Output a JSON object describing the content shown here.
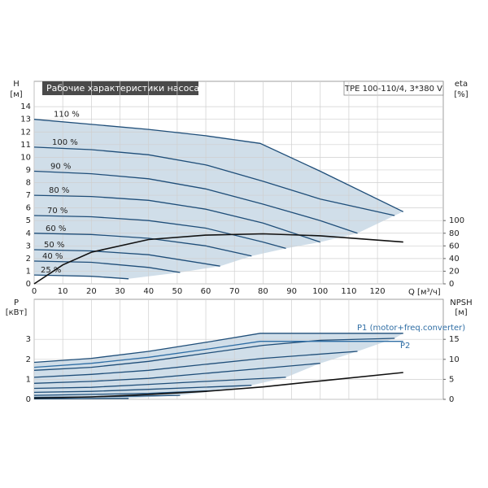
{
  "chart_data": [
    {
      "type": "line",
      "title": "Рабочие характеристики насоса",
      "subtitle": "TPE 100-110/4, 3*380 V",
      "ylabel": "H",
      "yunit": "[м]",
      "y2label": "eta",
      "y2unit": "[%]",
      "xlabel": "Q [м³/ч]",
      "xlim": [
        0,
        143
      ],
      "xticks": [
        0,
        10,
        20,
        30,
        40,
        50,
        60,
        70,
        80,
        90,
        100,
        110,
        120
      ],
      "ylim": [
        0,
        16
      ],
      "yticks": [
        0,
        1,
        2,
        3,
        4,
        5,
        6,
        7,
        8,
        9,
        10,
        11,
        12,
        13,
        14
      ],
      "y2lim": [
        0,
        320
      ],
      "y2ticks": [
        0,
        20,
        40,
        60,
        80,
        100
      ],
      "grid": true,
      "area_color": "#c8d8e5",
      "series": [
        {
          "name": "110 %",
          "color": "#1f4e79",
          "x": [
            0,
            20,
            40,
            60,
            79,
            100,
            129
          ],
          "values": [
            13,
            12.6,
            12.2,
            11.7,
            11.1,
            8.9,
            5.7
          ]
        },
        {
          "name": "100 %",
          "color": "#1f4e79",
          "x": [
            0,
            20,
            40,
            60,
            80,
            100,
            126
          ],
          "values": [
            10.8,
            10.6,
            10.2,
            9.4,
            8.1,
            6.7,
            5.4
          ]
        },
        {
          "name": "90 %",
          "color": "#1f4e79",
          "x": [
            0,
            20,
            40,
            60,
            80,
            100,
            113
          ],
          "values": [
            8.9,
            8.7,
            8.3,
            7.5,
            6.3,
            5.0,
            4.0
          ]
        },
        {
          "name": "80 %",
          "color": "#1f4e79",
          "x": [
            0,
            20,
            40,
            60,
            80,
            100
          ],
          "values": [
            7.0,
            6.9,
            6.6,
            5.9,
            4.8,
            3.3
          ]
        },
        {
          "name": "70 %",
          "color": "#1f4e79",
          "x": [
            0,
            20,
            40,
            60,
            80,
            88
          ],
          "values": [
            5.4,
            5.3,
            5.0,
            4.4,
            3.3,
            2.8
          ]
        },
        {
          "name": "60 %",
          "color": "#1f4e79",
          "x": [
            0,
            20,
            40,
            60,
            76
          ],
          "values": [
            4.0,
            3.9,
            3.6,
            3.0,
            2.2
          ]
        },
        {
          "name": "50 %",
          "color": "#1f4e79",
          "x": [
            0,
            20,
            40,
            65
          ],
          "values": [
            2.7,
            2.6,
            2.3,
            1.4
          ]
        },
        {
          "name": "40 %",
          "color": "#1f4e79",
          "x": [
            0,
            20,
            40,
            51
          ],
          "values": [
            1.8,
            1.7,
            1.3,
            0.9
          ]
        },
        {
          "name": "25 %",
          "color": "#1f4e79",
          "x": [
            0,
            20,
            33
          ],
          "values": [
            0.7,
            0.6,
            0.4
          ]
        },
        {
          "color": "#111111",
          "axis": "y2",
          "x": [
            0,
            10,
            20,
            40,
            60,
            80,
            100,
            129
          ],
          "values": [
            0,
            30,
            50,
            70,
            77,
            79,
            76,
            66
          ]
        }
      ]
    },
    {
      "type": "line",
      "ylabel": "P",
      "yunit": "[кВт]",
      "y2label": "NPSH",
      "y2unit": "[м]",
      "annotations": [
        "P1 (motor+freq.converter)",
        "P2"
      ],
      "xlim": [
        0,
        143
      ],
      "ylim": [
        0,
        5
      ],
      "yticks": [
        0,
        1,
        2,
        3
      ],
      "y2lim": [
        0,
        25
      ],
      "y2ticks": [
        0,
        5,
        10,
        15
      ],
      "grid": true,
      "area_color": "#c8d8e5",
      "series": [
        {
          "color": "#1f4e79",
          "x": [
            0,
            20,
            40,
            60,
            79,
            100,
            129
          ],
          "values": [
            1.85,
            2.05,
            2.4,
            2.85,
            3.3,
            3.3,
            3.3
          ]
        },
        {
          "color": "#1f4e79",
          "x": [
            0,
            20,
            40,
            60,
            80,
            100,
            126
          ],
          "values": [
            1.45,
            1.6,
            1.9,
            2.3,
            2.7,
            2.95,
            3.05
          ]
        },
        {
          "color": "#1f4e79",
          "x": [
            0,
            20,
            40,
            60,
            80,
            113
          ],
          "values": [
            1.1,
            1.25,
            1.45,
            1.75,
            2.05,
            2.4
          ]
        },
        {
          "color": "#1f4e79",
          "x": [
            0,
            20,
            40,
            60,
            80,
            100
          ],
          "values": [
            0.8,
            0.9,
            1.05,
            1.3,
            1.55,
            1.8
          ]
        },
        {
          "color": "#1f4e79",
          "x": [
            0,
            20,
            40,
            60,
            88
          ],
          "values": [
            0.55,
            0.6,
            0.75,
            0.9,
            1.1
          ]
        },
        {
          "color": "#1f4e79",
          "x": [
            0,
            20,
            40,
            76
          ],
          "values": [
            0.35,
            0.4,
            0.5,
            0.7
          ]
        },
        {
          "color": "#1f4e79",
          "x": [
            0,
            20,
            40,
            65
          ],
          "values": [
            0.2,
            0.25,
            0.3,
            0.45
          ]
        },
        {
          "color": "#1f4e79",
          "x": [
            0,
            20,
            51
          ],
          "values": [
            0.1,
            0.12,
            0.2
          ]
        },
        {
          "color": "#1f4e79",
          "x": [
            0,
            33
          ],
          "values": [
            0.03,
            0.05
          ]
        },
        {
          "color": "#2e6da4",
          "x": [
            0,
            20,
            40,
            60,
            79,
            100,
            129
          ],
          "values": [
            1.6,
            1.8,
            2.1,
            2.5,
            2.9,
            2.9,
            2.9
          ]
        },
        {
          "color": "#111111",
          "axis": "y2",
          "x": [
            0,
            20,
            40,
            60,
            80,
            100,
            129
          ],
          "values": [
            0.3,
            0.6,
            1.2,
            2.0,
            3.1,
            4.6,
            6.7
          ]
        }
      ]
    }
  ]
}
